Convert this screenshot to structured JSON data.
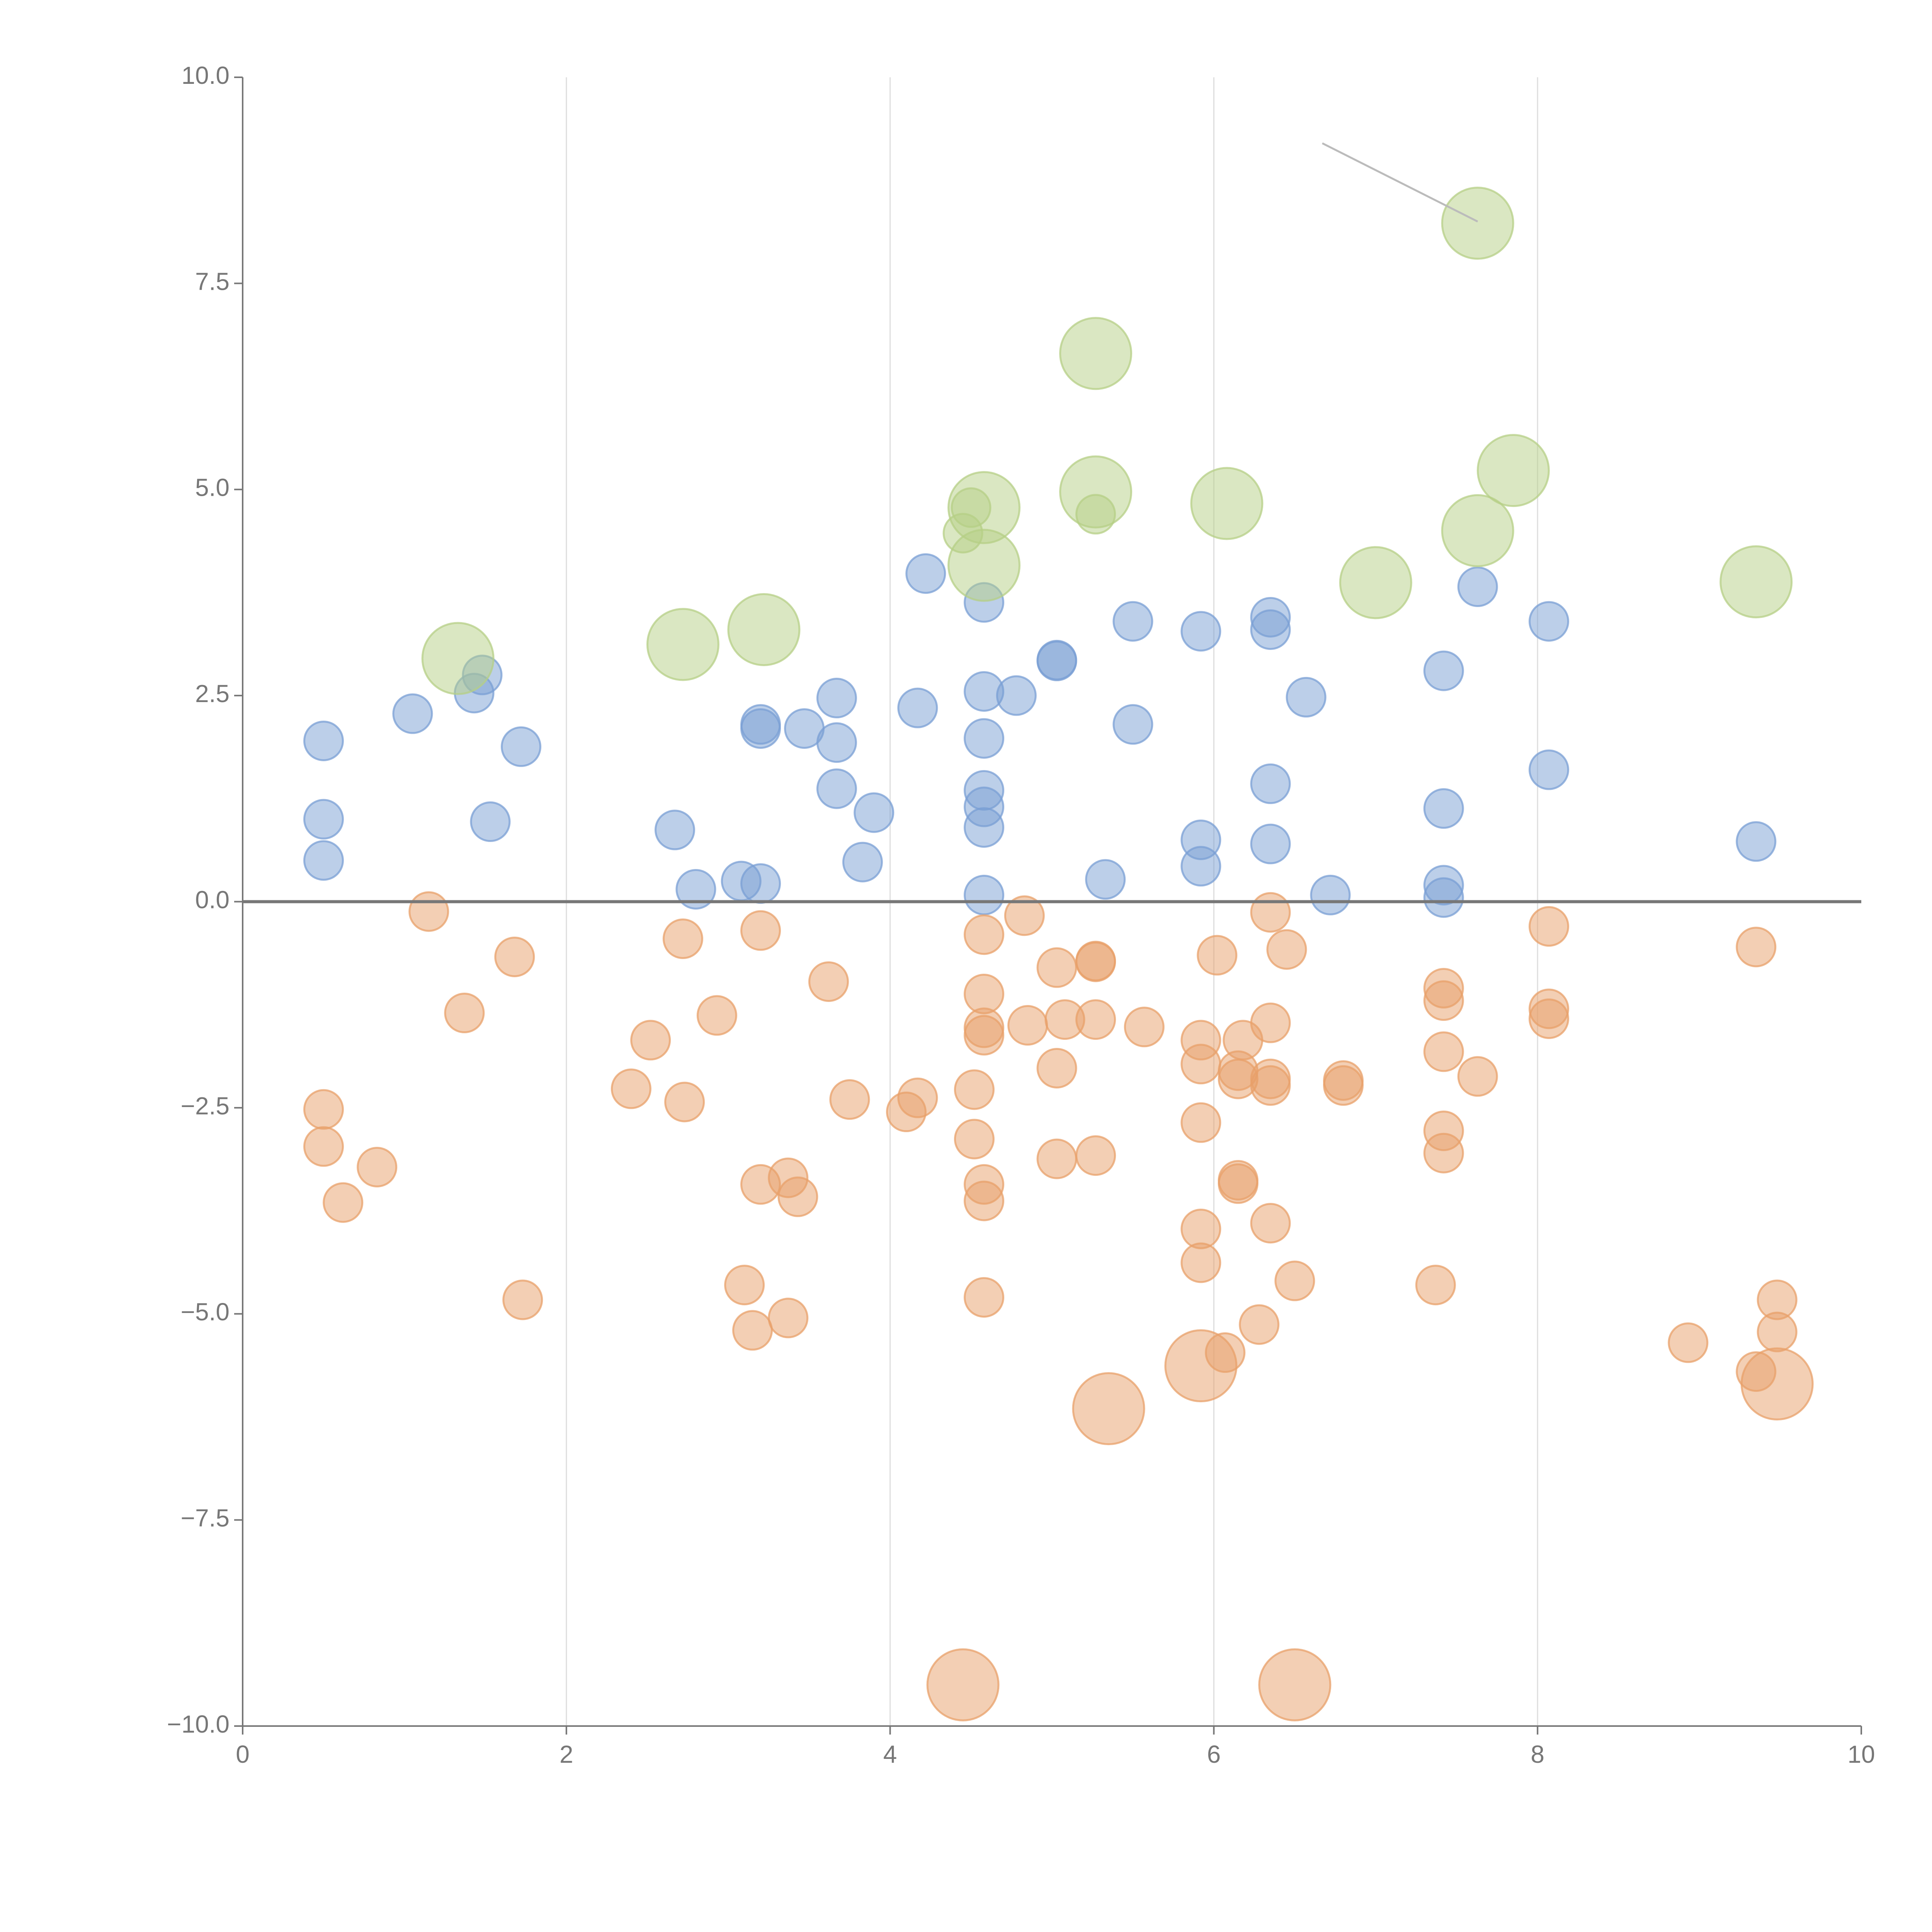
{
  "chart_data": {
    "type": "scatter",
    "title": "",
    "xlabel": "",
    "ylabel": "",
    "xlim": [
      0,
      10
    ],
    "ylim": [
      -10,
      10
    ],
    "x_ticks": [
      0,
      2,
      4,
      6,
      8,
      10
    ],
    "x_tick_labels": [
      "0",
      "2",
      "4",
      "6",
      "8",
      "10"
    ],
    "y_ticks": [
      10,
      7.5,
      5,
      2.5,
      0,
      -2.5,
      -5,
      -7.5,
      -10
    ],
    "y_tick_labels": [
      "10.0",
      "7.5",
      "5.0",
      "2.5",
      "0.0",
      "−2.5",
      "−5.0",
      "−7.5",
      "−10.0"
    ],
    "vertical_grid": [
      2,
      4,
      6,
      8
    ],
    "reference_line_y": 0,
    "annotation_leader": {
      "from": [
        6.67,
        9.2
      ],
      "to": [
        7.63,
        8.25
      ]
    },
    "series": [
      {
        "name": "positive",
        "color": "#7a9fd4",
        "size": "small",
        "points": [
          [
            0.5,
            1.95
          ],
          [
            0.5,
            1.0
          ],
          [
            0.5,
            0.5
          ],
          [
            1.05,
            2.28
          ],
          [
            1.43,
            2.53
          ],
          [
            1.48,
            2.75
          ],
          [
            1.53,
            0.97
          ],
          [
            1.72,
            1.88
          ],
          [
            2.67,
            0.87
          ],
          [
            2.8,
            0.15
          ],
          [
            3.08,
            0.25
          ],
          [
            3.2,
            0.22
          ],
          [
            3.2,
            2.15
          ],
          [
            3.2,
            2.1
          ],
          [
            3.47,
            2.1
          ],
          [
            3.67,
            2.47
          ],
          [
            3.67,
            1.93
          ],
          [
            3.67,
            1.37
          ],
          [
            3.83,
            0.48
          ],
          [
            3.9,
            1.08
          ],
          [
            4.17,
            2.35
          ],
          [
            4.22,
            3.98
          ],
          [
            4.58,
            3.63
          ],
          [
            4.58,
            2.55
          ],
          [
            4.58,
            1.98
          ],
          [
            4.58,
            1.35
          ],
          [
            4.58,
            1.15
          ],
          [
            4.58,
            0.9
          ],
          [
            4.58,
            0.08
          ],
          [
            4.78,
            2.5
          ],
          [
            5.03,
            2.93
          ],
          [
            5.03,
            2.92
          ],
          [
            5.33,
            0.27
          ],
          [
            5.5,
            3.4
          ],
          [
            5.5,
            2.15
          ],
          [
            5.92,
            3.28
          ],
          [
            5.92,
            0.75
          ],
          [
            5.92,
            0.43
          ],
          [
            6.35,
            3.45
          ],
          [
            6.35,
            3.3
          ],
          [
            6.35,
            1.43
          ],
          [
            6.35,
            0.7
          ],
          [
            6.57,
            2.48
          ],
          [
            6.72,
            0.08
          ],
          [
            7.42,
            2.8
          ],
          [
            7.42,
            1.13
          ],
          [
            7.42,
            0.2
          ],
          [
            7.42,
            0.05
          ],
          [
            7.63,
            3.82
          ],
          [
            8.07,
            3.4
          ],
          [
            8.07,
            1.6
          ],
          [
            9.35,
            0.73
          ]
        ]
      },
      {
        "name": "negative",
        "color": "#e8a06a",
        "size": "small",
        "points": [
          [
            0.5,
            -2.52
          ],
          [
            0.5,
            -2.97
          ],
          [
            0.62,
            -3.65
          ],
          [
            0.83,
            -3.22
          ],
          [
            1.15,
            -0.12
          ],
          [
            1.37,
            -1.35
          ],
          [
            1.68,
            -0.67
          ],
          [
            1.73,
            -4.83
          ],
          [
            2.4,
            -2.27
          ],
          [
            2.52,
            -1.68
          ],
          [
            2.73,
            -2.43
          ],
          [
            2.72,
            -0.45
          ],
          [
            2.93,
            -1.38
          ],
          [
            3.1,
            -4.65
          ],
          [
            3.15,
            -5.2
          ],
          [
            3.2,
            -0.35
          ],
          [
            3.2,
            -3.43
          ],
          [
            3.37,
            -3.35
          ],
          [
            3.37,
            -5.05
          ],
          [
            3.43,
            -3.58
          ],
          [
            3.62,
            -0.97
          ],
          [
            3.75,
            -2.4
          ],
          [
            4.1,
            -2.55
          ],
          [
            4.17,
            -2.38
          ],
          [
            4.52,
            -2.28
          ],
          [
            4.52,
            -2.88
          ],
          [
            4.58,
            -0.4
          ],
          [
            4.58,
            -1.12
          ],
          [
            4.58,
            -1.53
          ],
          [
            4.58,
            -1.62
          ],
          [
            4.58,
            -3.43
          ],
          [
            4.58,
            -3.63
          ],
          [
            4.58,
            -4.8
          ],
          [
            4.83,
            -0.17
          ],
          [
            4.85,
            -1.5
          ],
          [
            5.03,
            -0.8
          ],
          [
            5.03,
            -2.02
          ],
          [
            5.03,
            -3.12
          ],
          [
            5.08,
            -1.43
          ],
          [
            5.27,
            -0.72
          ],
          [
            5.27,
            -0.73
          ],
          [
            5.27,
            -1.43
          ],
          [
            5.27,
            -3.08
          ],
          [
            5.57,
            -1.52
          ],
          [
            5.92,
            -1.68
          ],
          [
            5.92,
            -1.97
          ],
          [
            5.92,
            -2.68
          ],
          [
            5.92,
            -3.97
          ],
          [
            5.92,
            -4.38
          ],
          [
            6.02,
            -0.65
          ],
          [
            6.07,
            -5.47
          ],
          [
            6.15,
            -2.05
          ],
          [
            6.15,
            -2.15
          ],
          [
            6.15,
            -3.38
          ],
          [
            6.15,
            -3.42
          ],
          [
            6.18,
            -1.68
          ],
          [
            6.28,
            -5.13
          ],
          [
            6.35,
            -0.13
          ],
          [
            6.35,
            -1.47
          ],
          [
            6.35,
            -2.15
          ],
          [
            6.35,
            -2.23
          ],
          [
            6.35,
            -3.9
          ],
          [
            6.45,
            -0.58
          ],
          [
            6.5,
            -4.6
          ],
          [
            6.8,
            -2.17
          ],
          [
            6.8,
            -2.23
          ],
          [
            7.37,
            -4.65
          ],
          [
            7.42,
            -1.05
          ],
          [
            7.42,
            -1.2
          ],
          [
            7.42,
            -1.82
          ],
          [
            7.42,
            -2.78
          ],
          [
            7.42,
            -3.05
          ],
          [
            7.63,
            -2.12
          ],
          [
            8.07,
            -0.3
          ],
          [
            8.07,
            -1.3
          ],
          [
            8.07,
            -1.42
          ],
          [
            8.93,
            -5.35
          ],
          [
            9.35,
            -0.55
          ],
          [
            9.35,
            -5.7
          ],
          [
            9.48,
            -4.83
          ],
          [
            9.48,
            -5.22
          ]
        ]
      },
      {
        "name": "negative-highlight",
        "color": "#e8a06a",
        "size": "large",
        "points": [
          [
            4.45,
            -9.5
          ],
          [
            6.5,
            -9.5
          ],
          [
            5.35,
            -6.15
          ],
          [
            5.92,
            -5.63
          ],
          [
            9.48,
            -5.85
          ]
        ]
      },
      {
        "name": "positive-highlight",
        "color": "#b5cf85",
        "size": "large",
        "points": [
          [
            1.33,
            2.95
          ],
          [
            2.72,
            3.12
          ],
          [
            3.22,
            3.3
          ],
          [
            4.58,
            4.08
          ],
          [
            4.58,
            4.78
          ],
          [
            5.27,
            6.65
          ],
          [
            5.27,
            4.97
          ],
          [
            6.08,
            4.83
          ],
          [
            7.0,
            3.87
          ],
          [
            7.63,
            8.23
          ],
          [
            7.63,
            4.5
          ],
          [
            7.85,
            5.23
          ],
          [
            9.35,
            3.88
          ]
        ]
      },
      {
        "name": "positive-highlight-small",
        "color": "#b5cf85",
        "size": "small",
        "points": [
          [
            4.5,
            4.78
          ],
          [
            4.45,
            4.47
          ],
          [
            5.27,
            4.7
          ]
        ]
      }
    ]
  }
}
